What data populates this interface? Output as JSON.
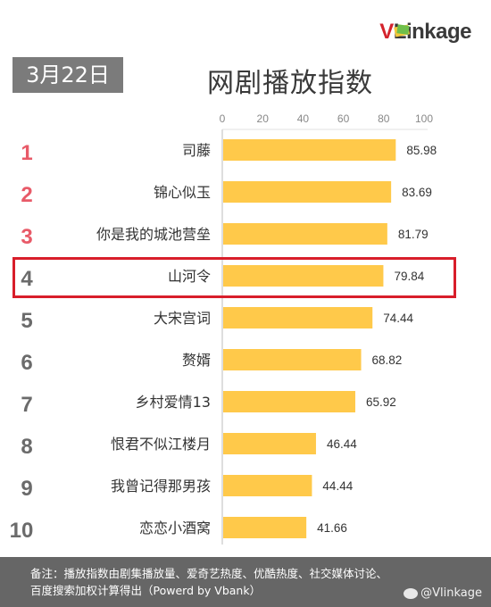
{
  "logo": {
    "v": "V",
    "rest": "Linkage"
  },
  "header": {
    "date": "3月22日",
    "title": "网剧播放指数"
  },
  "chart_data": {
    "type": "bar",
    "orientation": "horizontal",
    "title": "网剧播放指数",
    "x_ticks": [
      0,
      20,
      40,
      60,
      80,
      100
    ],
    "xlim": [
      0,
      100
    ],
    "bar_color": "#ffc94a",
    "rank_colors": {
      "top3": "#e85a68",
      "rest": "#6b6b6b"
    },
    "highlight_color": "#d81e2a",
    "highlight_rank": 4,
    "ranks": [
      "1",
      "2",
      "3",
      "4",
      "5",
      "6",
      "7",
      "8",
      "9",
      "10"
    ],
    "categories": [
      "司藤",
      "锦心似玉",
      "你是我的城池营垒",
      "山河令",
      "大宋宫词",
      "赘婿",
      "乡村爱情13",
      "恨君不似江楼月",
      "我曾记得那男孩",
      "恋恋小酒窝"
    ],
    "values": [
      85.98,
      83.69,
      81.79,
      79.84,
      74.44,
      68.82,
      65.92,
      46.44,
      44.44,
      41.66
    ]
  },
  "footer": {
    "line1": "备注：播放指数由剧集播放量、爱奇艺热度、优酷热度、社交媒体讨论、",
    "line2": "百度搜索加权计算得出（Powerd by Vbank）",
    "watermark": "@Vlinkage"
  }
}
